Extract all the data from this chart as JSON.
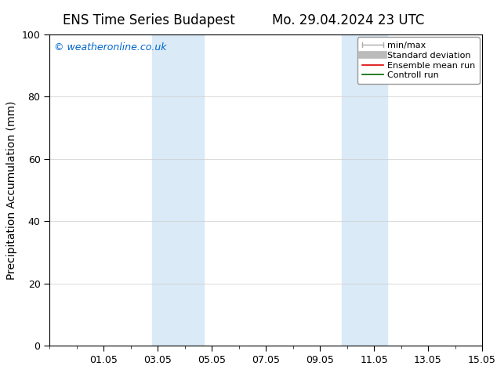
{
  "title_left": "ENS Time Series Budapest",
  "title_right": "Mo. 29.04.2024 23 UTC",
  "ylabel": "Precipitation Accumulation (mm)",
  "watermark": "© weatheronline.co.uk",
  "watermark_color": "#0066cc",
  "ylim": [
    0,
    100
  ],
  "xlim": [
    0,
    16
  ],
  "xtick_labels": [
    "01.05",
    "03.05",
    "05.05",
    "07.05",
    "09.05",
    "11.05",
    "13.05",
    "15.05"
  ],
  "xtick_positions": [
    2,
    4,
    6,
    8,
    10,
    12,
    14,
    16
  ],
  "ytick_labels": [
    "0",
    "20",
    "40",
    "60",
    "80",
    "100"
  ],
  "ytick_positions": [
    0,
    20,
    40,
    60,
    80,
    100
  ],
  "shaded_bands": [
    {
      "x_start": 3.8,
      "x_end": 5.7
    },
    {
      "x_start": 10.8,
      "x_end": 12.5
    }
  ],
  "shaded_color": "#daeaf7",
  "background_color": "#ffffff",
  "grid_color": "#cccccc",
  "legend_entries": [
    {
      "label": "min/max",
      "color": "#aaaaaa",
      "linewidth": 1.2
    },
    {
      "label": "Standard deviation",
      "color": "#bbbbbb",
      "linewidth": 7
    },
    {
      "label": "Ensemble mean run",
      "color": "#dd0000",
      "linewidth": 1.2
    },
    {
      "label": "Controll run",
      "color": "#006600",
      "linewidth": 1.2
    }
  ],
  "title_fontsize": 12,
  "tick_fontsize": 9,
  "ylabel_fontsize": 10,
  "watermark_fontsize": 9,
  "legend_fontsize": 8
}
